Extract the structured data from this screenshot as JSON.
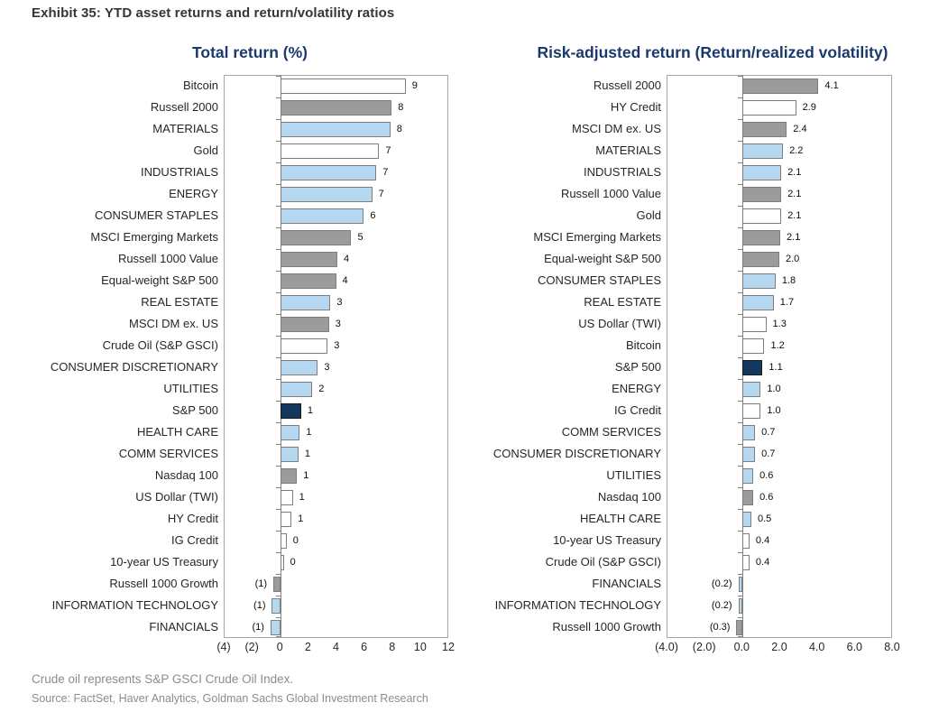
{
  "page": {
    "exhibit_title": "Exhibit 35: YTD asset returns and return/volatility ratios",
    "footnote": "Crude oil represents S&P GSCI Crude Oil Index.",
    "source": "Source: FactSet, Haver Analytics, Goldman Sachs Global Investment Research"
  },
  "colors": {
    "navy": "#12395d",
    "blue": "#b5d7ef",
    "gray": "#9b9b9b",
    "white": "#ffffff",
    "bar_border": "#7f7f7f",
    "navy_border": "#1a1a1a",
    "axis_line": "#a6a6a6",
    "title_navy": "#1b3a6b"
  },
  "chart_data": [
    {
      "type": "bar",
      "orientation": "horizontal",
      "title": "Total return (%)",
      "xlabel": "",
      "xlim": [
        -4,
        12
      ],
      "grid": false,
      "legend": "none",
      "xticks": [
        {
          "v": -4,
          "label": "(4)"
        },
        {
          "v": -2,
          "label": "(2)"
        },
        {
          "v": 0,
          "label": "0"
        },
        {
          "v": 2,
          "label": "2"
        },
        {
          "v": 4,
          "label": "4"
        },
        {
          "v": 6,
          "label": "6"
        },
        {
          "v": 8,
          "label": "8"
        },
        {
          "v": 10,
          "label": "10"
        },
        {
          "v": 12,
          "label": "12"
        }
      ],
      "rows": [
        {
          "label": "Bitcoin",
          "value": 9,
          "value_label": "9",
          "bar_length": 9.0,
          "color": "white"
        },
        {
          "label": "Russell 2000",
          "value": 8,
          "value_label": "8",
          "bar_length": 8.0,
          "color": "gray"
        },
        {
          "label": "MATERIALS",
          "value": 8,
          "value_label": "8",
          "bar_length": 7.9,
          "color": "blue"
        },
        {
          "label": "Gold",
          "value": 7,
          "value_label": "7",
          "bar_length": 7.1,
          "color": "white"
        },
        {
          "label": "INDUSTRIALS",
          "value": 7,
          "value_label": "7",
          "bar_length": 6.9,
          "color": "blue"
        },
        {
          "label": "ENERGY",
          "value": 7,
          "value_label": "7",
          "bar_length": 6.6,
          "color": "blue"
        },
        {
          "label": "CONSUMER STAPLES",
          "value": 6,
          "value_label": "6",
          "bar_length": 6.0,
          "color": "blue"
        },
        {
          "label": "MSCI Emerging Markets",
          "value": 5,
          "value_label": "5",
          "bar_length": 5.1,
          "color": "gray"
        },
        {
          "label": "Russell 1000 Value",
          "value": 4,
          "value_label": "4",
          "bar_length": 4.1,
          "color": "gray"
        },
        {
          "label": "Equal-weight S&P 500",
          "value": 4,
          "value_label": "4",
          "bar_length": 4.0,
          "color": "gray"
        },
        {
          "label": "REAL ESTATE",
          "value": 3,
          "value_label": "3",
          "bar_length": 3.6,
          "color": "blue"
        },
        {
          "label": "MSCI DM ex. US",
          "value": 3,
          "value_label": "3",
          "bar_length": 3.5,
          "color": "gray"
        },
        {
          "label": "Crude Oil (S&P GSCI)",
          "value": 3,
          "value_label": "3",
          "bar_length": 3.4,
          "color": "white"
        },
        {
          "label": "CONSUMER DISCRETIONARY",
          "value": 3,
          "value_label": "3",
          "bar_length": 2.7,
          "color": "blue"
        },
        {
          "label": "UTILITIES",
          "value": 2,
          "value_label": "2",
          "bar_length": 2.3,
          "color": "blue"
        },
        {
          "label": "S&P 500",
          "value": 1,
          "value_label": "1",
          "bar_length": 1.5,
          "color": "navy"
        },
        {
          "label": "HEALTH CARE",
          "value": 1,
          "value_label": "1",
          "bar_length": 1.4,
          "color": "blue"
        },
        {
          "label": "COMM SERVICES",
          "value": 1,
          "value_label": "1",
          "bar_length": 1.3,
          "color": "blue"
        },
        {
          "label": "Nasdaq 100",
          "value": 1,
          "value_label": "1",
          "bar_length": 1.2,
          "color": "gray"
        },
        {
          "label": "US Dollar (TWI)",
          "value": 1,
          "value_label": "1",
          "bar_length": 0.9,
          "color": "white"
        },
        {
          "label": "HY Credit",
          "value": 1,
          "value_label": "1",
          "bar_length": 0.8,
          "color": "white"
        },
        {
          "label": "IG Credit",
          "value": 0,
          "value_label": "0",
          "bar_length": 0.45,
          "color": "white"
        },
        {
          "label": "10-year US Treasury",
          "value": 0,
          "value_label": "0",
          "bar_length": 0.25,
          "color": "white"
        },
        {
          "label": "Russell 1000 Growth",
          "value": -1,
          "value_label": "(1)",
          "bar_length": -0.5,
          "color": "gray"
        },
        {
          "label": "INFORMATION TECHNOLOGY",
          "value": -1,
          "value_label": "(1)",
          "bar_length": -0.6,
          "color": "blue"
        },
        {
          "label": "FINANCIALS",
          "value": -1,
          "value_label": "(1)",
          "bar_length": -0.7,
          "color": "blue"
        }
      ]
    },
    {
      "type": "bar",
      "orientation": "horizontal",
      "title": "Risk-adjusted return (Return/realized volatility)",
      "xlabel": "",
      "xlim": [
        -4,
        8
      ],
      "grid": false,
      "legend": "none",
      "xticks": [
        {
          "v": -4,
          "label": "(4.0)"
        },
        {
          "v": -2,
          "label": "(2.0)"
        },
        {
          "v": 0,
          "label": "0.0"
        },
        {
          "v": 2,
          "label": "2.0"
        },
        {
          "v": 4,
          "label": "4.0"
        },
        {
          "v": 6,
          "label": "6.0"
        },
        {
          "v": 8,
          "label": "8.0"
        }
      ],
      "rows": [
        {
          "label": "Russell 2000",
          "value": 4.1,
          "value_label": "4.1",
          "bar_length": 4.1,
          "color": "gray"
        },
        {
          "label": "HY Credit",
          "value": 2.9,
          "value_label": "2.9",
          "bar_length": 2.9,
          "color": "white"
        },
        {
          "label": "MSCI DM ex. US",
          "value": 2.4,
          "value_label": "2.4",
          "bar_length": 2.4,
          "color": "gray"
        },
        {
          "label": "MATERIALS",
          "value": 2.2,
          "value_label": "2.2",
          "bar_length": 2.2,
          "color": "blue"
        },
        {
          "label": "INDUSTRIALS",
          "value": 2.1,
          "value_label": "2.1",
          "bar_length": 2.1,
          "color": "blue"
        },
        {
          "label": "Russell 1000 Value",
          "value": 2.1,
          "value_label": "2.1",
          "bar_length": 2.1,
          "color": "gray"
        },
        {
          "label": "Gold",
          "value": 2.1,
          "value_label": "2.1",
          "bar_length": 2.1,
          "color": "white"
        },
        {
          "label": "MSCI Emerging Markets",
          "value": 2.1,
          "value_label": "2.1",
          "bar_length": 2.05,
          "color": "gray"
        },
        {
          "label": "Equal-weight S&P 500",
          "value": 2.0,
          "value_label": "2.0",
          "bar_length": 2.0,
          "color": "gray"
        },
        {
          "label": "CONSUMER STAPLES",
          "value": 1.8,
          "value_label": "1.8",
          "bar_length": 1.8,
          "color": "blue"
        },
        {
          "label": "REAL ESTATE",
          "value": 1.7,
          "value_label": "1.7",
          "bar_length": 1.7,
          "color": "blue"
        },
        {
          "label": "US Dollar (TWI)",
          "value": 1.3,
          "value_label": "1.3",
          "bar_length": 1.3,
          "color": "white"
        },
        {
          "label": "Bitcoin",
          "value": 1.2,
          "value_label": "1.2",
          "bar_length": 1.2,
          "color": "white"
        },
        {
          "label": "S&P 500",
          "value": 1.1,
          "value_label": "1.1",
          "bar_length": 1.1,
          "color": "navy"
        },
        {
          "label": "ENERGY",
          "value": 1.0,
          "value_label": "1.0",
          "bar_length": 1.0,
          "color": "blue"
        },
        {
          "label": "IG Credit",
          "value": 1.0,
          "value_label": "1.0",
          "bar_length": 1.0,
          "color": "white"
        },
        {
          "label": "COMM SERVICES",
          "value": 0.7,
          "value_label": "0.7",
          "bar_length": 0.7,
          "color": "blue"
        },
        {
          "label": "CONSUMER DISCRETIONARY",
          "value": 0.7,
          "value_label": "0.7",
          "bar_length": 0.7,
          "color": "blue"
        },
        {
          "label": "UTILITIES",
          "value": 0.6,
          "value_label": "0.6",
          "bar_length": 0.6,
          "color": "blue"
        },
        {
          "label": "Nasdaq 100",
          "value": 0.6,
          "value_label": "0.6",
          "bar_length": 0.6,
          "color": "gray"
        },
        {
          "label": "HEALTH CARE",
          "value": 0.5,
          "value_label": "0.5",
          "bar_length": 0.5,
          "color": "blue"
        },
        {
          "label": "10-year US Treasury",
          "value": 0.4,
          "value_label": "0.4",
          "bar_length": 0.4,
          "color": "white"
        },
        {
          "label": "Crude Oil (S&P GSCI)",
          "value": 0.4,
          "value_label": "0.4",
          "bar_length": 0.4,
          "color": "white"
        },
        {
          "label": "FINANCIALS",
          "value": -0.2,
          "value_label": "(0.2)",
          "bar_length": -0.2,
          "color": "blue"
        },
        {
          "label": "INFORMATION TECHNOLOGY",
          "value": -0.2,
          "value_label": "(0.2)",
          "bar_length": -0.2,
          "color": "blue"
        },
        {
          "label": "Russell 1000 Growth",
          "value": -0.3,
          "value_label": "(0.3)",
          "bar_length": -0.3,
          "color": "gray"
        }
      ]
    }
  ]
}
